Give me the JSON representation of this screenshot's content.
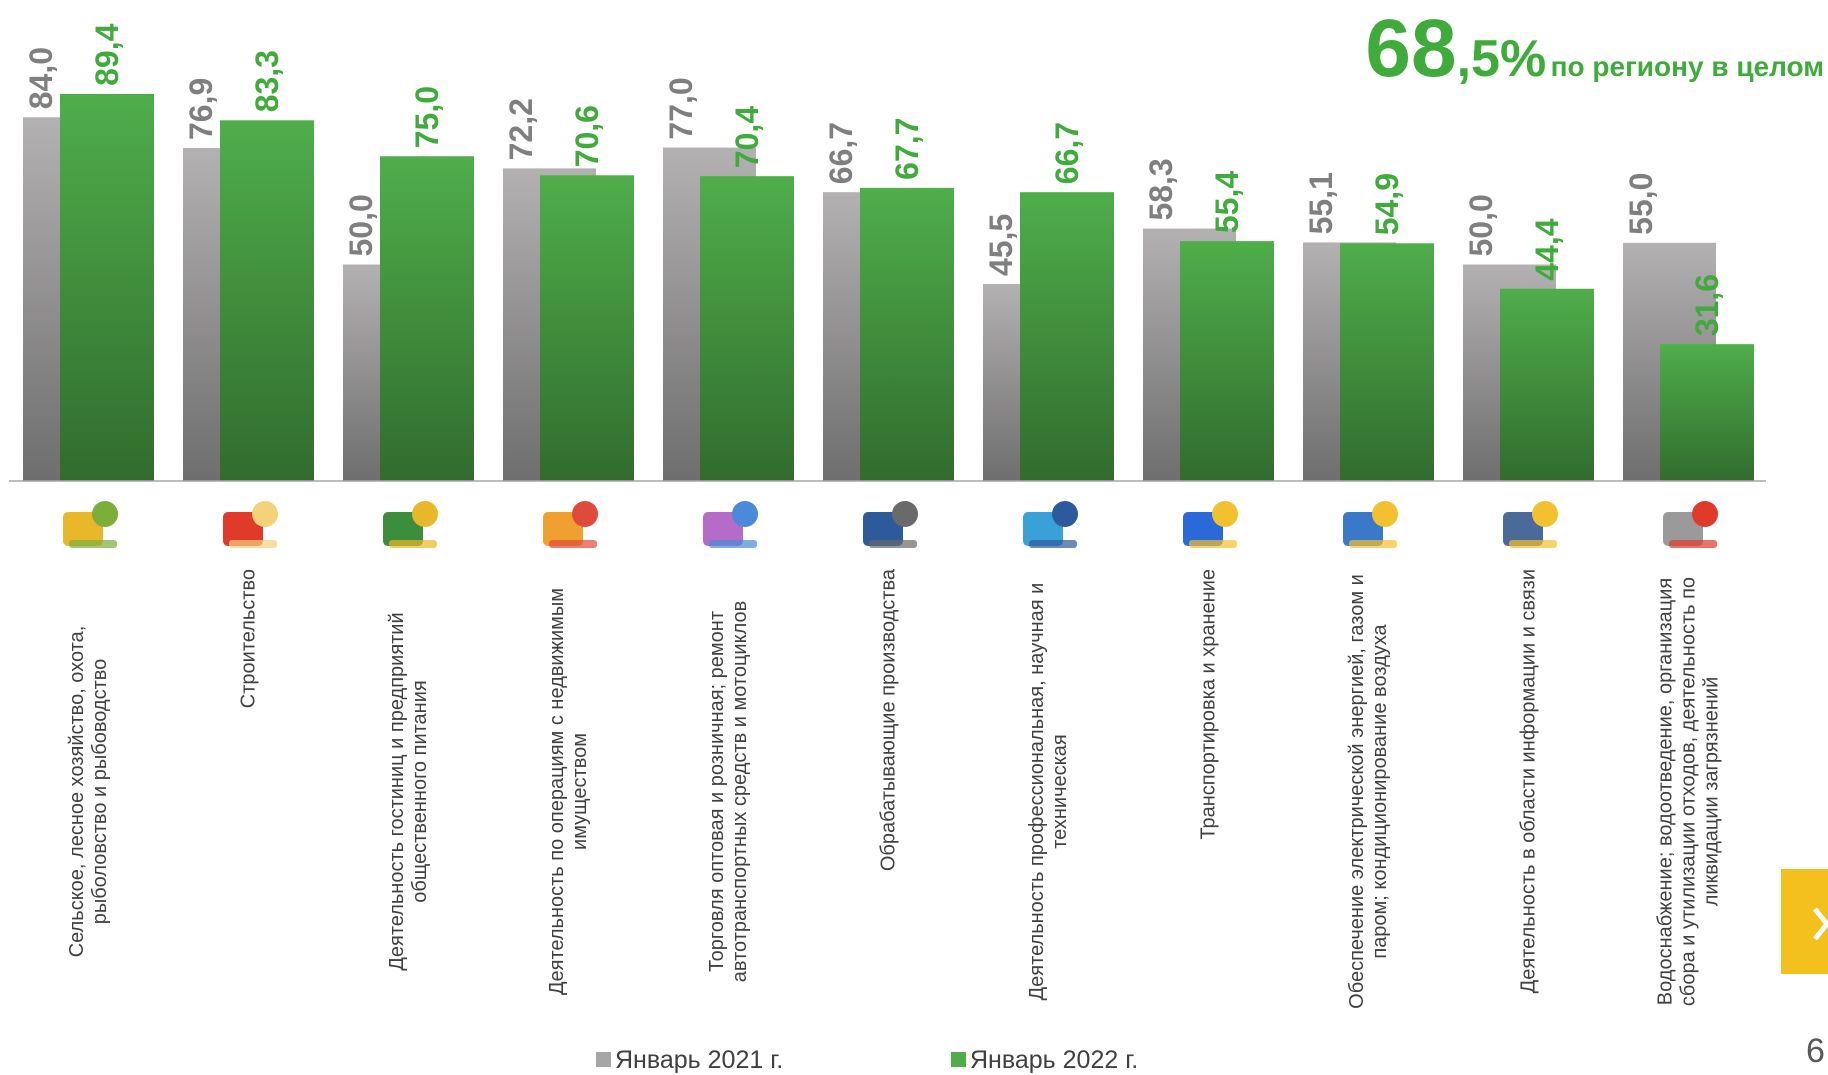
{
  "chart_data": {
    "type": "bar",
    "categories": [
      "Сельское, лесное хозяйство, охота, рыболовство и рыбоводство",
      "Строительство",
      "Деятельность гостиниц и предприятий общественного питания",
      "Деятельность по операциям с недвижимым имуществом",
      "Торговля оптовая и розничная; ремонт автотранспортных средств и мотоциклов",
      "Обрабатывающие производства",
      "Деятельность профессиональная, научная и техническая",
      "Транспортировка и хранение",
      "Обеспечение электрической энергией, газом и паром; кондиционирование воздуха",
      "Деятельность в области информации и связи",
      "Водоснабжение; водоотведение, организация сбора и утилизации отходов, деятельность по ликвидации загрязнений"
    ],
    "series": [
      {
        "name": "Январь 2021 г.",
        "color": "#b3b1b1",
        "values": [
          84.0,
          76.9,
          50.0,
          72.2,
          77.0,
          66.7,
          45.5,
          58.3,
          55.1,
          50.0,
          55.0
        ],
        "value_labels": [
          "84,0",
          "76,9",
          "50,0",
          "72,2",
          "77,0",
          "66,7",
          "45,5",
          "58,3",
          "55,1",
          "50,0",
          "55,0"
        ],
        "label_color": "#7f7f7f"
      },
      {
        "name": "Январь 2022 г.",
        "color": "#4fae4a",
        "values": [
          89.4,
          83.3,
          75.0,
          70.6,
          70.4,
          67.7,
          66.7,
          55.4,
          54.9,
          44.4,
          31.6
        ],
        "value_labels": [
          "89,4",
          "83,3",
          "75,0",
          "70,6",
          "70,4",
          "67,7",
          "66,7",
          "55,4",
          "54,9",
          "44,4",
          "31,6"
        ],
        "label_color": "#3fab3a"
      }
    ],
    "ylim": [
      0,
      100
    ],
    "headline": {
      "main": "68",
      "rest": ",5%",
      "text": "по региону в целом"
    }
  },
  "page_number": "6"
}
